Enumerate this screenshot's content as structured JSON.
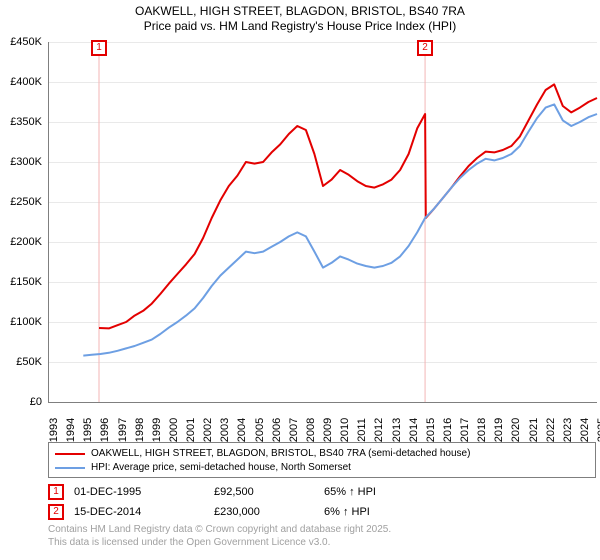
{
  "title": {
    "line1": "OAKWELL, HIGH STREET, BLAGDON, BRISTOL, BS40 7RA",
    "line2": "Price paid vs. HM Land Registry's House Price Index (HPI)"
  },
  "chart": {
    "type": "line",
    "background_color": "#ffffff",
    "grid_color": "#e9e9e9",
    "axis_color": "#7f7f7f",
    "font_size_ticks": 11,
    "y": {
      "min": 0,
      "max": 450000,
      "tick_step": 50000,
      "ticks": [
        "£0",
        "£50K",
        "£100K",
        "£150K",
        "£200K",
        "£250K",
        "£300K",
        "£350K",
        "£400K",
        "£450K"
      ]
    },
    "x": {
      "min": 1993,
      "max": 2025,
      "ticks": [
        "1993",
        "1994",
        "1995",
        "1996",
        "1997",
        "1998",
        "1999",
        "2000",
        "2001",
        "2002",
        "2003",
        "2004",
        "2005",
        "2006",
        "2007",
        "2008",
        "2009",
        "2010",
        "2011",
        "2012",
        "2013",
        "2014",
        "2015",
        "2016",
        "2017",
        "2018",
        "2019",
        "2020",
        "2021",
        "2022",
        "2023",
        "2024",
        "2025"
      ]
    },
    "series": [
      {
        "id": "price_paid",
        "label": "OAKWELL, HIGH STREET, BLAGDON, BRISTOL, BS40 7RA (semi-detached house)",
        "color": "#e30000",
        "line_width": 2,
        "points": [
          [
            1995.92,
            92500
          ],
          [
            1996.5,
            92000
          ],
          [
            1997.0,
            96000
          ],
          [
            1997.5,
            100000
          ],
          [
            1998.0,
            108000
          ],
          [
            1998.5,
            114000
          ],
          [
            1999.0,
            123000
          ],
          [
            1999.5,
            135000
          ],
          [
            2000.0,
            148000
          ],
          [
            2000.5,
            160000
          ],
          [
            2001.0,
            172000
          ],
          [
            2001.5,
            185000
          ],
          [
            2002.0,
            205000
          ],
          [
            2002.5,
            230000
          ],
          [
            2003.0,
            252000
          ],
          [
            2003.5,
            270000
          ],
          [
            2004.0,
            283000
          ],
          [
            2004.5,
            300000
          ],
          [
            2005.0,
            298000
          ],
          [
            2005.5,
            300000
          ],
          [
            2006.0,
            312000
          ],
          [
            2006.5,
            322000
          ],
          [
            2007.0,
            335000
          ],
          [
            2007.5,
            345000
          ],
          [
            2008.0,
            340000
          ],
          [
            2008.5,
            310000
          ],
          [
            2009.0,
            270000
          ],
          [
            2009.5,
            278000
          ],
          [
            2010.0,
            290000
          ],
          [
            2010.5,
            284000
          ],
          [
            2011.0,
            276000
          ],
          [
            2011.5,
            270000
          ],
          [
            2012.0,
            268000
          ],
          [
            2012.5,
            272000
          ],
          [
            2013.0,
            278000
          ],
          [
            2013.5,
            290000
          ],
          [
            2014.0,
            310000
          ],
          [
            2014.5,
            342000
          ],
          [
            2014.96,
            360000
          ],
          [
            2015.0,
            230000
          ],
          [
            2015.5,
            242000
          ],
          [
            2016.0,
            255000
          ],
          [
            2016.5,
            268000
          ],
          [
            2017.0,
            282000
          ],
          [
            2017.5,
            295000
          ],
          [
            2018.0,
            305000
          ],
          [
            2018.5,
            313000
          ],
          [
            2019.0,
            312000
          ],
          [
            2019.5,
            315000
          ],
          [
            2020.0,
            320000
          ],
          [
            2020.5,
            332000
          ],
          [
            2021.0,
            352000
          ],
          [
            2021.5,
            372000
          ],
          [
            2022.0,
            390000
          ],
          [
            2022.5,
            397000
          ],
          [
            2023.0,
            370000
          ],
          [
            2023.5,
            362000
          ],
          [
            2024.0,
            368000
          ],
          [
            2024.5,
            375000
          ],
          [
            2025.0,
            380000
          ]
        ]
      },
      {
        "id": "hpi",
        "label": "HPI: Average price, semi-detached house, North Somerset",
        "color": "#6d9fe3",
        "line_width": 2,
        "points": [
          [
            1995.0,
            58000
          ],
          [
            1995.5,
            59000
          ],
          [
            1996.0,
            60000
          ],
          [
            1996.5,
            61500
          ],
          [
            1997.0,
            64000
          ],
          [
            1997.5,
            67000
          ],
          [
            1998.0,
            70000
          ],
          [
            1998.5,
            74000
          ],
          [
            1999.0,
            78000
          ],
          [
            1999.5,
            85000
          ],
          [
            2000.0,
            93000
          ],
          [
            2000.5,
            100000
          ],
          [
            2001.0,
            108000
          ],
          [
            2001.5,
            117000
          ],
          [
            2002.0,
            130000
          ],
          [
            2002.5,
            145000
          ],
          [
            2003.0,
            158000
          ],
          [
            2003.5,
            168000
          ],
          [
            2004.0,
            178000
          ],
          [
            2004.5,
            188000
          ],
          [
            2005.0,
            186000
          ],
          [
            2005.5,
            188000
          ],
          [
            2006.0,
            194000
          ],
          [
            2006.5,
            200000
          ],
          [
            2007.0,
            207000
          ],
          [
            2007.5,
            212000
          ],
          [
            2008.0,
            207000
          ],
          [
            2008.5,
            188000
          ],
          [
            2009.0,
            168000
          ],
          [
            2009.5,
            174000
          ],
          [
            2010.0,
            182000
          ],
          [
            2010.5,
            178000
          ],
          [
            2011.0,
            173000
          ],
          [
            2011.5,
            170000
          ],
          [
            2012.0,
            168000
          ],
          [
            2012.5,
            170000
          ],
          [
            2013.0,
            174000
          ],
          [
            2013.5,
            182000
          ],
          [
            2014.0,
            195000
          ],
          [
            2014.5,
            212000
          ],
          [
            2014.96,
            230000
          ],
          [
            2015.5,
            242000
          ],
          [
            2016.0,
            255000
          ],
          [
            2016.5,
            268000
          ],
          [
            2017.0,
            280000
          ],
          [
            2017.5,
            290000
          ],
          [
            2018.0,
            298000
          ],
          [
            2018.5,
            304000
          ],
          [
            2019.0,
            302000
          ],
          [
            2019.5,
            305000
          ],
          [
            2020.0,
            310000
          ],
          [
            2020.5,
            320000
          ],
          [
            2021.0,
            338000
          ],
          [
            2021.5,
            355000
          ],
          [
            2022.0,
            368000
          ],
          [
            2022.5,
            372000
          ],
          [
            2023.0,
            352000
          ],
          [
            2023.5,
            345000
          ],
          [
            2024.0,
            350000
          ],
          [
            2024.5,
            356000
          ],
          [
            2025.0,
            360000
          ]
        ]
      }
    ],
    "markers": [
      {
        "num": "1",
        "x_year": 1995.92,
        "color": "#e30000",
        "line_color": "#f3b6b6"
      },
      {
        "num": "2",
        "x_year": 2014.96,
        "color": "#e30000",
        "line_color": "#f3b6b6"
      }
    ]
  },
  "legend": {
    "items": [
      {
        "color": "#e30000",
        "label": "OAKWELL, HIGH STREET, BLAGDON, BRISTOL, BS40 7RA (semi-detached house)"
      },
      {
        "color": "#6d9fe3",
        "label": "HPI: Average price, semi-detached house, North Somerset"
      }
    ]
  },
  "transactions": [
    {
      "num": "1",
      "color": "#e30000",
      "date": "01-DEC-1995",
      "price": "£92,500",
      "pct": "65% ↑ HPI"
    },
    {
      "num": "2",
      "color": "#e30000",
      "date": "15-DEC-2014",
      "price": "£230,000",
      "pct": "6% ↑ HPI"
    }
  ],
  "credit": {
    "line1": "Contains HM Land Registry data © Crown copyright and database right 2025.",
    "line2": "This data is licensed under the Open Government Licence v3.0."
  }
}
